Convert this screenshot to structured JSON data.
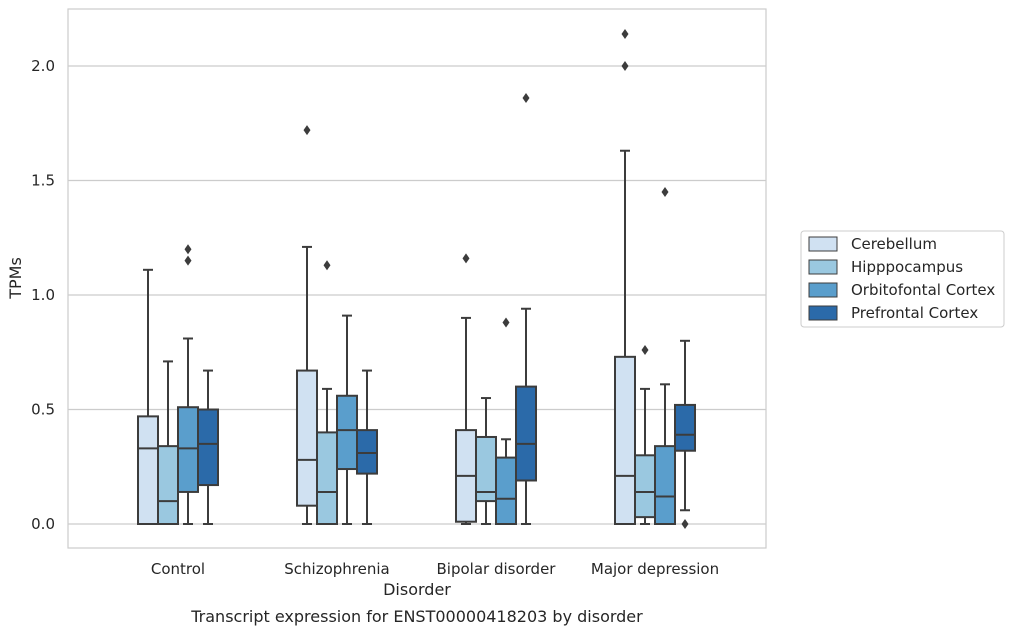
{
  "chart_data": {
    "type": "box",
    "caption": "Transcript expression for ENST00000418203 by disorder",
    "xlabel": "Disorder",
    "ylabel": "TPMs",
    "ylim": [
      -0.1,
      2.25
    ],
    "yticks": [
      0.0,
      0.5,
      1.0,
      1.5,
      2.0
    ],
    "ytick_labels": [
      "0.0",
      "0.5",
      "1.0",
      "1.5",
      "2.0"
    ],
    "grid": true,
    "legend_position": "right",
    "categories": [
      "Control",
      "Schizophrenia",
      "Bipolar disorder",
      "Major depression"
    ],
    "series": [
      {
        "name": "Cerebellum",
        "color": "#d0e1f2",
        "boxes": [
          {
            "whisker_low": 0.0,
            "q1": 0.0,
            "median": 0.33,
            "q3": 0.47,
            "whisker_high": 1.11,
            "outliers": []
          },
          {
            "whisker_low": 0.0,
            "q1": 0.08,
            "median": 0.28,
            "q3": 0.67,
            "whisker_high": 1.21,
            "outliers": [
              1.72
            ]
          },
          {
            "whisker_low": 0.0,
            "q1": 0.01,
            "median": 0.21,
            "q3": 0.41,
            "whisker_high": 0.9,
            "outliers": [
              1.16
            ]
          },
          {
            "whisker_low": 0.0,
            "q1": 0.0,
            "median": 0.21,
            "q3": 0.73,
            "whisker_high": 1.63,
            "outliers": [
              2.0,
              2.14
            ]
          }
        ]
      },
      {
        "name": "Hipppocampus",
        "color": "#9ac8e0",
        "boxes": [
          {
            "whisker_low": 0.0,
            "q1": 0.0,
            "median": 0.1,
            "q3": 0.34,
            "whisker_high": 0.71,
            "outliers": []
          },
          {
            "whisker_low": 0.0,
            "q1": 0.0,
            "median": 0.14,
            "q3": 0.4,
            "whisker_high": 0.59,
            "outliers": [
              1.13
            ]
          },
          {
            "whisker_low": 0.0,
            "q1": 0.1,
            "median": 0.14,
            "q3": 0.38,
            "whisker_high": 0.55,
            "outliers": []
          },
          {
            "whisker_low": 0.0,
            "q1": 0.03,
            "median": 0.14,
            "q3": 0.3,
            "whisker_high": 0.59,
            "outliers": [
              0.76
            ]
          }
        ]
      },
      {
        "name": "Orbitofontal Cortex",
        "color": "#5a9ecc",
        "boxes": [
          {
            "whisker_low": 0.0,
            "q1": 0.14,
            "median": 0.33,
            "q3": 0.51,
            "whisker_high": 0.81,
            "outliers": [
              1.15,
              1.2
            ]
          },
          {
            "whisker_low": 0.0,
            "q1": 0.24,
            "median": 0.41,
            "q3": 0.56,
            "whisker_high": 0.91,
            "outliers": []
          },
          {
            "whisker_low": 0.0,
            "q1": 0.0,
            "median": 0.11,
            "q3": 0.29,
            "whisker_high": 0.37,
            "outliers": [
              0.88
            ]
          },
          {
            "whisker_low": 0.0,
            "q1": 0.0,
            "median": 0.12,
            "q3": 0.34,
            "whisker_high": 0.61,
            "outliers": [
              1.45
            ]
          }
        ]
      },
      {
        "name": "Prefrontal Cortex",
        "color": "#2b6aa9",
        "boxes": [
          {
            "whisker_low": 0.0,
            "q1": 0.17,
            "median": 0.35,
            "q3": 0.5,
            "whisker_high": 0.67,
            "outliers": []
          },
          {
            "whisker_low": 0.0,
            "q1": 0.22,
            "median": 0.31,
            "q3": 0.41,
            "whisker_high": 0.67,
            "outliers": []
          },
          {
            "whisker_low": 0.0,
            "q1": 0.19,
            "median": 0.35,
            "q3": 0.6,
            "whisker_high": 0.94,
            "outliers": [
              1.86
            ]
          },
          {
            "whisker_low": 0.06,
            "q1": 0.32,
            "median": 0.39,
            "q3": 0.52,
            "whisker_high": 0.8,
            "outliers": [
              0.0
            ]
          }
        ]
      }
    ]
  }
}
